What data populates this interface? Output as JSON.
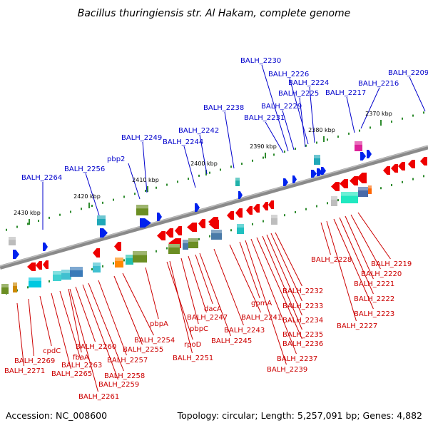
{
  "title": "Bacillus thuringiensis str. Al Hakam, complete genome",
  "footer": {
    "accession": "Accession: NC_008600",
    "topology": "Topology: circular; Length: 5,257,091 bp; Genes: 4,882"
  },
  "colors": {
    "forward_label": "#0000cc",
    "reverse_label": "#cc0000",
    "forward_gene": "#0022ee",
    "reverse_gene": "#ee0000",
    "backbone": "#8a8a8a",
    "tick_minor": "#2e8b2e"
  },
  "scale_labels": [
    "2430 kbp",
    "2420 kbp",
    "2410 kbp",
    "2400 kbp",
    "2390 kbp",
    "2380 kbp",
    "2370 kbp"
  ],
  "forward_genes": [
    "BALH_2264",
    "BALH_2256",
    "pbp2",
    "BALH_2249",
    "BALH_2244",
    "BALH_2242",
    "BALH_2238",
    "BALH_2231",
    "BALH_2229",
    "BALH_2225",
    "BALH_2226",
    "BALH_2224",
    "BALH_2230",
    "BALH_2217",
    "BALH_2216",
    "BALH_2209"
  ],
  "reverse_genes": [
    "BALH_2271",
    "BALH_2269",
    "cpdC",
    "BALH_2265",
    "BALH_2263",
    "fbaA",
    "BALH_2260",
    "BALH_2261",
    "BALH_2259",
    "BALH_2258",
    "BALH_2257",
    "BALH_2255",
    "BALH_2254",
    "pbpA",
    "rpoD",
    "BALH_2251",
    "pbpC",
    "BALH_2247",
    "dacA",
    "BALH_2245",
    "BALH_2243",
    "BALH_2241",
    "gpmA",
    "BALH_2239",
    "BALH_2237",
    "BALH_2236",
    "BALH_2235",
    "BALH_2234",
    "BALH_2233",
    "BALH_2232",
    "BALH_2228",
    "BALH_2227",
    "BALH_2223",
    "BALH_2222",
    "BALH_2221",
    "BALH_2220",
    "BALH_2219"
  ]
}
